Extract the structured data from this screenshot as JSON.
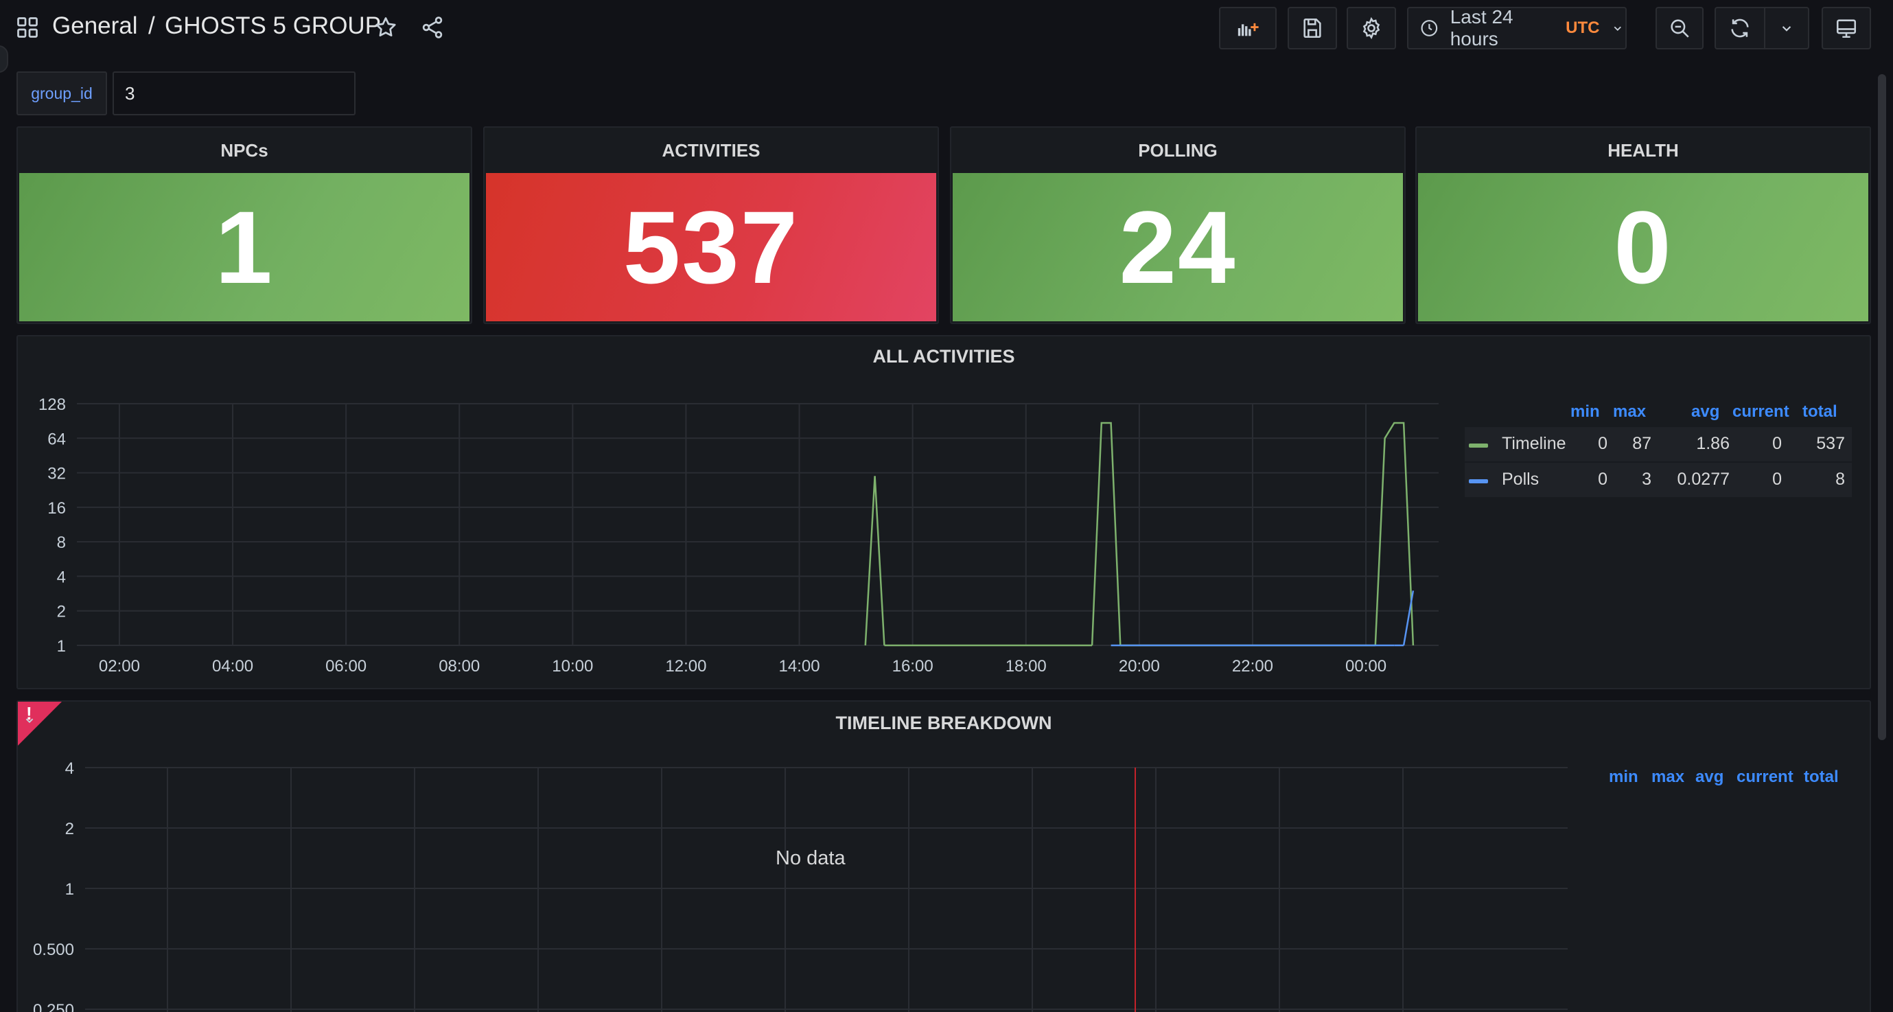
{
  "header": {
    "breadcrumb_root": "General",
    "breadcrumb_sep": "/",
    "dashboard_title": "GHOSTS 5 GROUP",
    "icons": [
      "apps-icon",
      "star-icon",
      "share-icon",
      "add-panel-icon",
      "save-icon",
      "settings-icon",
      "clock-icon",
      "zoom-out-icon",
      "refresh-icon",
      "chevron-down-icon",
      "tv-icon"
    ]
  },
  "timepicker": {
    "label": "Last 24 hours",
    "timezone": "UTC"
  },
  "variable": {
    "name": "group_id",
    "value": "3"
  },
  "stats": [
    {
      "title": "NPCs",
      "value": "1",
      "color": "#73b061"
    },
    {
      "title": "ACTIVITIES",
      "value": "537",
      "color": "#dd3a45"
    },
    {
      "title": "POLLING",
      "value": "24",
      "color": "#73b061"
    },
    {
      "title": "HEALTH",
      "value": "0",
      "color": "#73b061"
    }
  ],
  "all_activities": {
    "title": "ALL ACTIVITIES",
    "legend_headers": [
      "min",
      "max",
      "avg",
      "current",
      "total"
    ],
    "legend_rows": [
      {
        "name": "Timeline",
        "color": "#7eb26d",
        "min": "0",
        "max": "87",
        "avg": "1.86",
        "current": "0",
        "total": "537"
      },
      {
        "name": "Polls",
        "color": "#5794f2",
        "min": "0",
        "max": "3",
        "avg": "0.0277",
        "current": "0",
        "total": "8"
      }
    ]
  },
  "timeline_breakdown": {
    "title": "TIMELINE BREAKDOWN",
    "no_data": "No data",
    "alert_mark": "!",
    "legend_headers": [
      "min",
      "max",
      "avg",
      "current",
      "total"
    ]
  },
  "chart_data": [
    {
      "type": "line",
      "title": "ALL ACTIVITIES",
      "xlabel": "",
      "ylabel": "",
      "y_scale": "log2",
      "ylim": [
        1,
        128
      ],
      "y_ticks": [
        "1",
        "2",
        "4",
        "8",
        "16",
        "32",
        "64",
        "128"
      ],
      "x_ticks": [
        "02:00",
        "04:00",
        "06:00",
        "08:00",
        "10:00",
        "12:00",
        "14:00",
        "16:00",
        "18:00",
        "20:00",
        "22:00",
        "00:00"
      ],
      "grid": true,
      "legend_placement": "right",
      "series": [
        {
          "name": "Timeline",
          "color": "#7eb26d",
          "points": [
            [
              "15:10",
              1
            ],
            [
              "15:20",
              30
            ],
            [
              "15:30",
              1
            ],
            [
              "19:10",
              1
            ],
            [
              "19:20",
              87
            ],
            [
              "19:30",
              87
            ],
            [
              "19:40",
              1
            ],
            [
              "00:10",
              1
            ],
            [
              "00:20",
              64
            ],
            [
              "00:30",
              87
            ],
            [
              "00:40",
              87
            ],
            [
              "00:50",
              1
            ]
          ]
        },
        {
          "name": "Polls",
          "color": "#5794f2",
          "points": [
            [
              "19:30",
              1
            ],
            [
              "19:40",
              1
            ],
            [
              "00:30",
              1
            ],
            [
              "00:40",
              1
            ],
            [
              "00:50",
              3
            ]
          ]
        }
      ]
    },
    {
      "type": "line",
      "title": "TIMELINE BREAKDOWN",
      "xlabel": "",
      "ylabel": "",
      "y_scale": "log2",
      "y_ticks": [
        "4",
        "2",
        "1",
        "0.500",
        "0.250"
      ],
      "grid": true,
      "series": []
    }
  ]
}
